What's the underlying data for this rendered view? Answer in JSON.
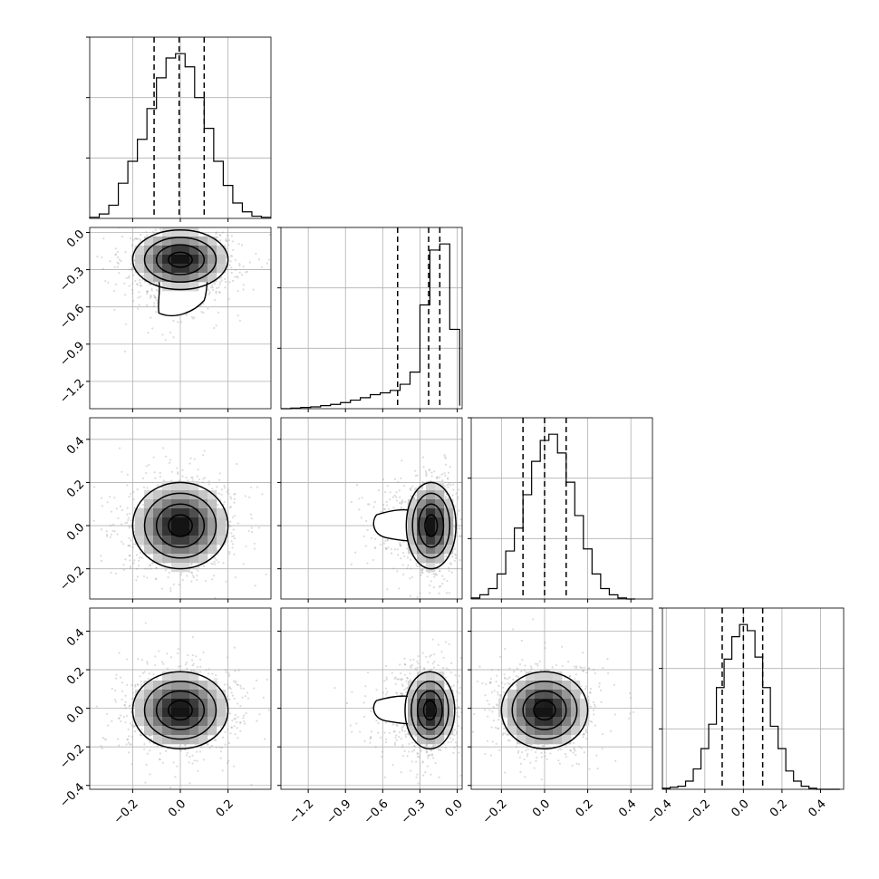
{
  "chart_data": {
    "type": "corner",
    "title": "",
    "grid": true,
    "parameters": [
      {
        "range": [
          -0.38,
          0.38
        ],
        "ticks": [
          -0.2,
          0.0,
          0.2
        ],
        "tick_labels": [
          "−0.2",
          "0.0",
          "0.2"
        ]
      },
      {
        "range": [
          -1.42,
          0.04
        ],
        "ticks": [
          -1.2,
          -0.9,
          -0.6,
          -0.3,
          0.0
        ],
        "tick_labels": [
          "−1.2",
          "−0.9",
          "−0.6",
          "−0.3",
          "0.0"
        ]
      },
      {
        "range": [
          -0.34,
          0.5
        ],
        "ticks": [
          -0.2,
          0.0,
          0.2,
          0.4
        ],
        "tick_labels": [
          "−0.2",
          "0.0",
          "0.2",
          "0.4"
        ]
      },
      {
        "range": [
          -0.42,
          0.52
        ],
        "ticks": [
          -0.4,
          -0.2,
          0.0,
          0.2,
          0.4
        ],
        "tick_labels": [
          "−0.4",
          "−0.2",
          "0.0",
          "0.2",
          "0.4"
        ]
      }
    ],
    "histograms": [
      {
        "bin_edges": [
          -0.38,
          -0.34,
          -0.3,
          -0.26,
          -0.22,
          -0.18,
          -0.14,
          -0.1,
          -0.06,
          -0.02,
          0.02,
          0.06,
          0.1,
          0.14,
          0.18,
          0.22,
          0.26,
          0.3,
          0.34,
          0.38
        ],
        "counts": [
          1,
          4,
          12,
          32,
          52,
          72,
          100,
          128,
          146,
          150,
          138,
          110,
          82,
          52,
          30,
          14,
          6,
          2,
          1
        ],
        "quantiles": [
          -0.11,
          -0.005,
          0.1
        ]
      },
      {
        "bin_edges": [
          -1.42,
          -1.34,
          -1.26,
          -1.18,
          -1.1,
          -1.02,
          -0.94,
          -0.86,
          -0.78,
          -0.7,
          -0.62,
          -0.54,
          -0.46,
          -0.38,
          -0.3,
          -0.22,
          -0.14,
          -0.06,
          0.02
        ],
        "counts": [
          0,
          1,
          2,
          3,
          5,
          7,
          10,
          14,
          18,
          23,
          26,
          30,
          40,
          60,
          170,
          260,
          270,
          130,
          5
        ],
        "quantiles": [
          -0.48,
          -0.23,
          -0.14
        ]
      },
      {
        "bin_edges": [
          -0.34,
          -0.3,
          -0.26,
          -0.22,
          -0.18,
          -0.14,
          -0.1,
          -0.06,
          -0.02,
          0.02,
          0.06,
          0.1,
          0.14,
          0.18,
          0.22,
          0.26,
          0.3,
          0.34,
          0.38,
          0.42
        ],
        "counts": [
          1,
          4,
          10,
          24,
          46,
          68,
          100,
          132,
          152,
          158,
          140,
          112,
          80,
          48,
          24,
          10,
          4,
          1,
          0
        ],
        "quantiles": [
          -0.1,
          0.0,
          0.1
        ]
      },
      {
        "bin_edges": [
          -0.42,
          -0.38,
          -0.34,
          -0.3,
          -0.26,
          -0.22,
          -0.18,
          -0.14,
          -0.1,
          -0.06,
          -0.02,
          0.02,
          0.06,
          0.1,
          0.14,
          0.18,
          0.22,
          0.26,
          0.3,
          0.34,
          0.38,
          0.42,
          0.46,
          0.5
        ],
        "counts": [
          1,
          2,
          3,
          8,
          20,
          40,
          64,
          100,
          128,
          150,
          162,
          156,
          130,
          100,
          62,
          40,
          18,
          8,
          3,
          1,
          0,
          0,
          0
        ],
        "quantiles": [
          -0.11,
          0.0,
          0.1
        ]
      }
    ],
    "pairs": [
      {
        "x": 0,
        "y": 1,
        "center": [
          0.0,
          -0.22
        ],
        "sd": [
          0.1,
          0.12
        ],
        "tail_to": -0.65
      },
      {
        "x": 0,
        "y": 2,
        "center": [
          0.0,
          0.0
        ],
        "sd": [
          0.1,
          0.1
        ]
      },
      {
        "x": 0,
        "y": 3,
        "center": [
          0.0,
          -0.01
        ],
        "sd": [
          0.1,
          0.1
        ]
      },
      {
        "x": 1,
        "y": 2,
        "center": [
          -0.21,
          0.0
        ],
        "sd": [
          0.1,
          0.1
        ],
        "tail_to": -0.65
      },
      {
        "x": 1,
        "y": 3,
        "center": [
          -0.22,
          -0.01
        ],
        "sd": [
          0.1,
          0.1
        ],
        "tail_to": -0.65
      },
      {
        "x": 2,
        "y": 3,
        "center": [
          0.0,
          -0.01
        ],
        "sd": [
          0.1,
          0.1
        ]
      }
    ]
  }
}
